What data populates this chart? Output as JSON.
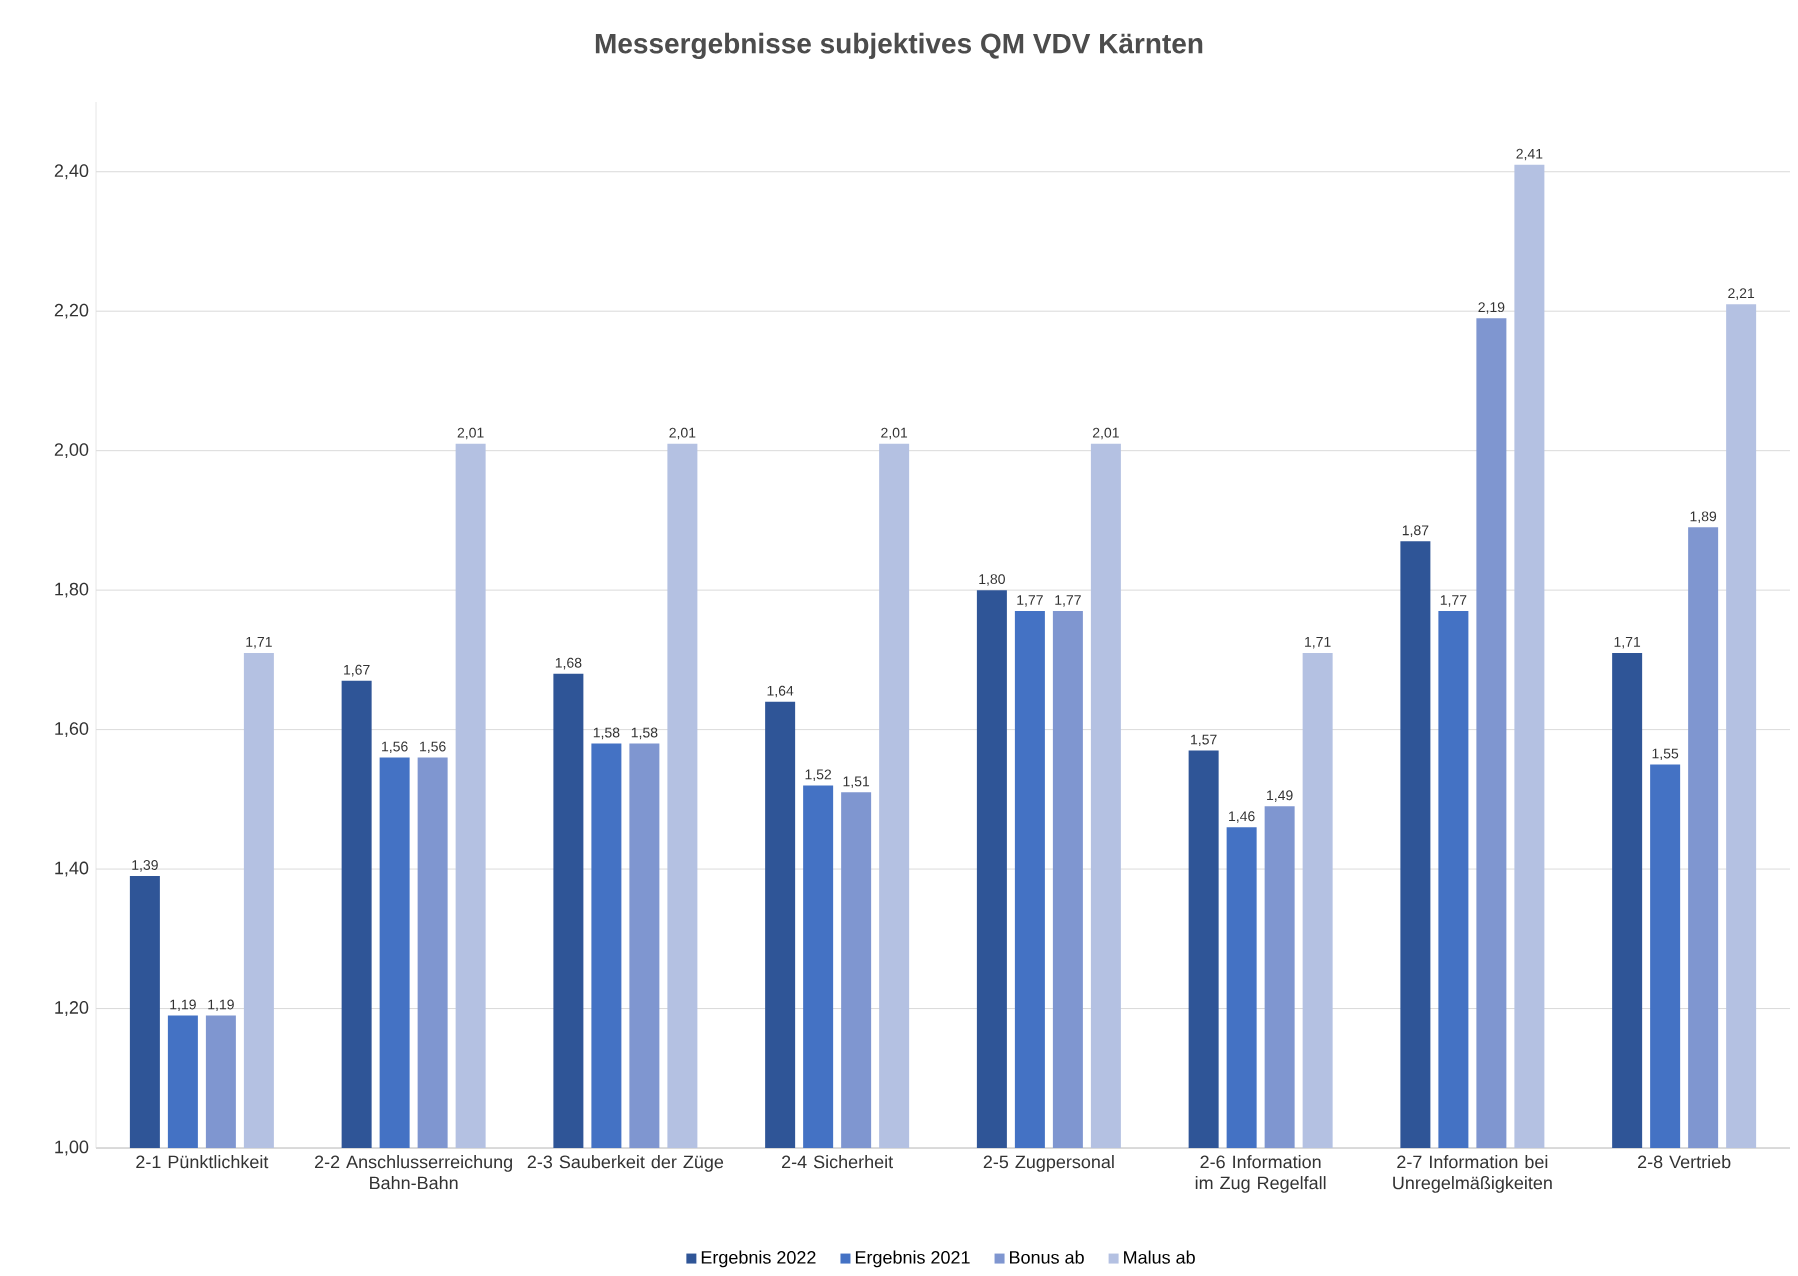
{
  "chart_data": {
    "type": "bar",
    "title": "Messergebnisse subjektives QM VDV Kärnten",
    "categories": [
      "2-1 Pünktlichkeit",
      "2-2 Anschlusserreichung Bahn-Bahn",
      "2-3 Sauberkeit der Züge",
      "2-4 Sicherheit",
      "2-5 Zugpersonal",
      "2-6 Information im Zug Regelfall",
      "2-7 Information bei Unregelmäßigkeiten",
      "2-8 Vertrieb"
    ],
    "series": [
      {
        "name": "Ergebnis 2022",
        "color": "#2f5597",
        "values": [
          1.39,
          1.67,
          1.68,
          1.64,
          1.8,
          1.57,
          1.87,
          1.71
        ],
        "value_labels": [
          "1,39",
          "1,67",
          "1,68",
          "1,64",
          "1,80",
          "1,57",
          "1,87",
          "1,71"
        ]
      },
      {
        "name": "Ergebnis 2021",
        "color": "#4472c4",
        "values": [
          1.19,
          1.56,
          1.58,
          1.52,
          1.77,
          1.46,
          1.77,
          1.55
        ],
        "value_labels": [
          "1,19",
          "1,56",
          "1,58",
          "1,52",
          "1,77",
          "1,46",
          "1,77",
          "1,55"
        ]
      },
      {
        "name": "Bonus ab",
        "color": "#7f96d0",
        "values": [
          1.19,
          1.56,
          1.58,
          1.51,
          1.77,
          1.49,
          2.19,
          1.89
        ],
        "value_labels": [
          "1,19",
          "1,56",
          "1,58",
          "1,51",
          "1,77",
          "1,49",
          "2,19",
          "1,89"
        ]
      },
      {
        "name": "Malus ab",
        "color": "#b4c1e2",
        "values": [
          1.71,
          2.01,
          2.01,
          2.01,
          2.01,
          1.71,
          2.41,
          2.21
        ],
        "value_labels": [
          "1,71",
          "2,01",
          "2,01",
          "2,01",
          "2,01",
          "1,71",
          "2,41",
          "2,21"
        ]
      }
    ],
    "ylim": [
      1.0,
      2.5
    ],
    "yticks": [
      {
        "value": 1.0,
        "label": "1,00"
      },
      {
        "value": 1.2,
        "label": "1,20"
      },
      {
        "value": 1.4,
        "label": "1,40"
      },
      {
        "value": 1.6,
        "label": "1,60"
      },
      {
        "value": 1.8,
        "label": "1,80"
      },
      {
        "value": 2.0,
        "label": "2,00"
      },
      {
        "value": 2.2,
        "label": "2,20"
      },
      {
        "value": 2.4,
        "label": "2,40"
      }
    ],
    "grid": "y",
    "legend": "bottom"
  }
}
